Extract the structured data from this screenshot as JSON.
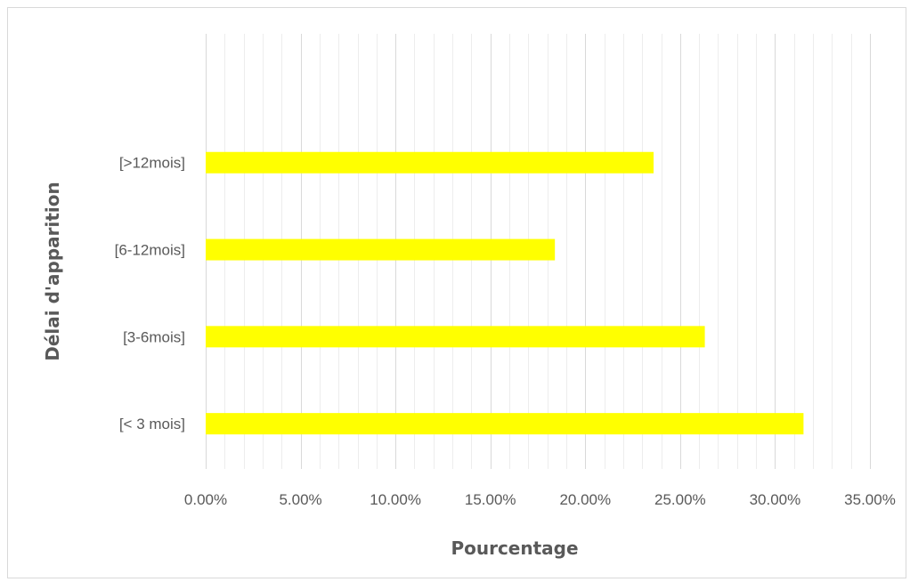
{
  "chart_data": {
    "type": "bar",
    "orientation": "horizontal",
    "title": "",
    "xlabel": "Pourcentage",
    "ylabel": "Délai d'apparition",
    "categories": [
      "[< 3 mois]",
      "[3-6mois]",
      "[6-12mois]",
      "[>12mois]"
    ],
    "values": [
      31.5,
      26.3,
      18.4,
      23.6
    ],
    "value_unit": "%",
    "xlim": [
      0,
      35
    ],
    "x_ticks": [
      "0.00%",
      "5.00%",
      "10.00%",
      "15.00%",
      "20.00%",
      "25.00%",
      "30.00%",
      "35.00%"
    ],
    "major_tick_step": 5,
    "minor_tick_step": 1,
    "grid": true,
    "legend": "none",
    "bar_color": "#FFFF00",
    "major_grid_color": "#D9D9D9",
    "minor_grid_color": "#EDEDED"
  }
}
